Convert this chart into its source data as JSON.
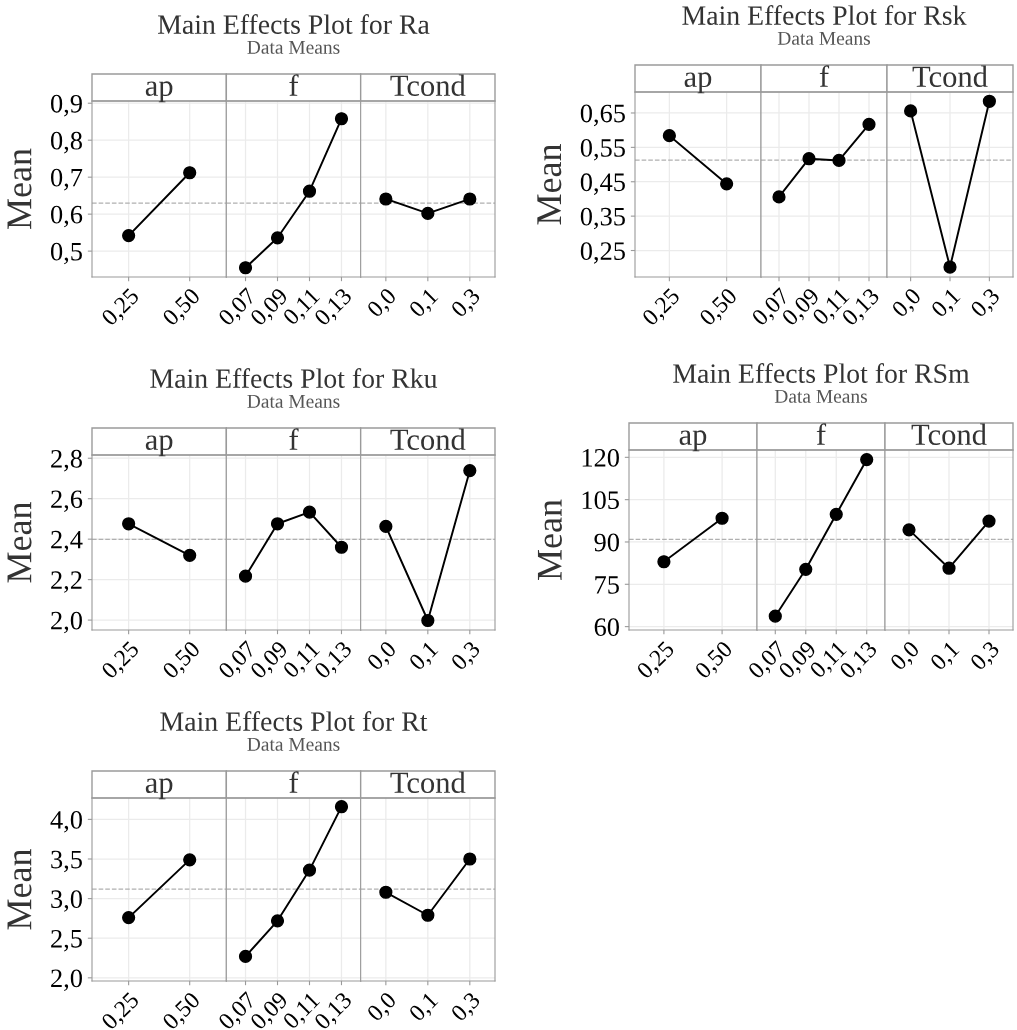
{
  "chart_data": [
    {
      "type": "line",
      "title": "ap",
      "annotations": [
        "Main Effects Plot for Ra",
        "Data Means"
      ],
      "ylabel": "Mean",
      "categories": [
        "0,25",
        "0,50"
      ],
      "series": [
        {
          "color": "#000000",
          "values": [
            0.542,
            0.712
          ]
        }
      ],
      "marker": "circle",
      "grid": true,
      "ylim": [
        0.43,
        0.906
      ],
      "yticks": [
        {
          "value": 0.5,
          "label": "0,5"
        },
        {
          "value": 0.6,
          "label": "0,6"
        },
        {
          "value": 0.7,
          "label": "0,7"
        },
        {
          "value": 0.8,
          "label": "0,8"
        },
        {
          "value": 0.9,
          "label": "0,9"
        }
      ],
      "ref_lines": [
        {
          "axis": "y",
          "value": 0.63,
          "color": "#b0b0b0",
          "line_style": "dashed"
        }
      ]
    },
    {
      "type": "line",
      "title": "f",
      "categories": [
        "0,07",
        "0,09",
        "0,11",
        "0,13"
      ],
      "series": [
        {
          "color": "#000000",
          "values": [
            0.455,
            0.536,
            0.662,
            0.858
          ]
        }
      ],
      "marker": "circle",
      "grid": true,
      "tick_labels": "x",
      "ylim": [
        0.43,
        0.906
      ],
      "yticks": [
        {
          "value": 0.5,
          "label": null
        },
        {
          "value": 0.6,
          "label": null
        },
        {
          "value": 0.7,
          "label": null
        },
        {
          "value": 0.8,
          "label": null
        },
        {
          "value": 0.9,
          "label": null
        }
      ],
      "ref_lines": [
        {
          "axis": "y",
          "value": 0.63,
          "color": "#b0b0b0",
          "line_style": "dashed"
        }
      ]
    },
    {
      "type": "line",
      "title": "Tcond",
      "categories": [
        "0,0",
        "0,1",
        "0,3"
      ],
      "series": [
        {
          "color": "#000000",
          "values": [
            0.641,
            0.602,
            0.641
          ]
        }
      ],
      "marker": "circle",
      "grid": true,
      "tick_labels": "x",
      "ylim": [
        0.43,
        0.906
      ],
      "yticks": [
        {
          "value": 0.5,
          "label": null
        },
        {
          "value": 0.6,
          "label": null
        },
        {
          "value": 0.7,
          "label": null
        },
        {
          "value": 0.8,
          "label": null
        },
        {
          "value": 0.9,
          "label": null
        }
      ],
      "ref_lines": [
        {
          "axis": "y",
          "value": 0.63,
          "color": "#b0b0b0",
          "line_style": "dashed"
        }
      ]
    },
    {
      "type": "line",
      "title": "ap",
      "annotations": [
        "Main Effects Plot for Rsk",
        "Data Means"
      ],
      "ylabel": "Mean",
      "categories": [
        "0,25",
        "0,50"
      ],
      "series": [
        {
          "color": "#000000",
          "values": [
            0.584,
            0.444
          ]
        }
      ],
      "marker": "circle",
      "grid": true,
      "ylim": [
        0.173,
        0.711
      ],
      "yticks": [
        {
          "value": 0.25,
          "label": "0,25"
        },
        {
          "value": 0.35,
          "label": "0,35"
        },
        {
          "value": 0.45,
          "label": "0,45"
        },
        {
          "value": 0.55,
          "label": "0,55"
        },
        {
          "value": 0.65,
          "label": "0,65"
        }
      ],
      "ref_lines": [
        {
          "axis": "y",
          "value": 0.513,
          "color": "#b0b0b0",
          "line_style": "dashed"
        }
      ]
    },
    {
      "type": "line",
      "title": "f",
      "categories": [
        "0,07",
        "0,09",
        "0,11",
        "0,13"
      ],
      "series": [
        {
          "color": "#000000",
          "values": [
            0.406,
            0.517,
            0.512,
            0.617
          ]
        }
      ],
      "marker": "circle",
      "grid": true,
      "tick_labels": "x",
      "ylim": [
        0.173,
        0.711
      ],
      "yticks": [
        {
          "value": 0.25,
          "label": null
        },
        {
          "value": 0.35,
          "label": null
        },
        {
          "value": 0.45,
          "label": null
        },
        {
          "value": 0.55,
          "label": null
        },
        {
          "value": 0.65,
          "label": null
        }
      ],
      "ref_lines": [
        {
          "axis": "y",
          "value": 0.513,
          "color": "#b0b0b0",
          "line_style": "dashed"
        }
      ]
    },
    {
      "type": "line",
      "title": "Tcond",
      "categories": [
        "0,0",
        "0,1",
        "0,3"
      ],
      "series": [
        {
          "color": "#000000",
          "values": [
            0.656,
            0.202,
            0.684
          ]
        }
      ],
      "marker": "circle",
      "grid": true,
      "tick_labels": "x",
      "ylim": [
        0.173,
        0.711
      ],
      "yticks": [
        {
          "value": 0.25,
          "label": null
        },
        {
          "value": 0.35,
          "label": null
        },
        {
          "value": 0.45,
          "label": null
        },
        {
          "value": 0.55,
          "label": null
        },
        {
          "value": 0.65,
          "label": null
        }
      ],
      "ref_lines": [
        {
          "axis": "y",
          "value": 0.513,
          "color": "#b0b0b0",
          "line_style": "dashed"
        }
      ]
    },
    {
      "type": "line",
      "title": "ap",
      "annotations": [
        "Main Effects Plot for Rku",
        "Data Means"
      ],
      "ylabel": "Mean",
      "categories": [
        "0,25",
        "0,50"
      ],
      "series": [
        {
          "color": "#000000",
          "values": [
            2.476,
            2.32
          ]
        }
      ],
      "marker": "circle",
      "grid": true,
      "ylim": [
        1.951,
        2.816
      ],
      "yticks": [
        {
          "value": 2.0,
          "label": "2,0"
        },
        {
          "value": 2.2,
          "label": "2,2"
        },
        {
          "value": 2.4,
          "label": "2,4"
        },
        {
          "value": 2.6,
          "label": "2,6"
        },
        {
          "value": 2.8,
          "label": "2,8"
        }
      ],
      "ref_lines": [
        {
          "axis": "y",
          "value": 2.399,
          "color": "#b0b0b0",
          "line_style": "dashed"
        }
      ]
    },
    {
      "type": "line",
      "title": "f",
      "categories": [
        "0,07",
        "0,09",
        "0,11",
        "0,13"
      ],
      "series": [
        {
          "color": "#000000",
          "values": [
            2.217,
            2.476,
            2.534,
            2.36
          ]
        }
      ],
      "marker": "circle",
      "grid": true,
      "tick_labels": "x",
      "ylim": [
        1.951,
        2.816
      ],
      "yticks": [
        {
          "value": 2.0,
          "label": null
        },
        {
          "value": 2.2,
          "label": null
        },
        {
          "value": 2.4,
          "label": null
        },
        {
          "value": 2.6,
          "label": null
        },
        {
          "value": 2.8,
          "label": null
        }
      ],
      "ref_lines": [
        {
          "axis": "y",
          "value": 2.399,
          "color": "#b0b0b0",
          "line_style": "dashed"
        }
      ]
    },
    {
      "type": "line",
      "title": "Tcond",
      "categories": [
        "0,0",
        "0,1",
        "0,3"
      ],
      "series": [
        {
          "color": "#000000",
          "values": [
            2.463,
            1.998,
            2.739
          ]
        }
      ],
      "marker": "circle",
      "grid": true,
      "tick_labels": "x",
      "ylim": [
        1.951,
        2.816
      ],
      "yticks": [
        {
          "value": 2.0,
          "label": null
        },
        {
          "value": 2.2,
          "label": null
        },
        {
          "value": 2.4,
          "label": null
        },
        {
          "value": 2.6,
          "label": null
        },
        {
          "value": 2.8,
          "label": null
        }
      ],
      "ref_lines": [
        {
          "axis": "y",
          "value": 2.399,
          "color": "#b0b0b0",
          "line_style": "dashed"
        }
      ]
    },
    {
      "type": "line",
      "title": "ap",
      "annotations": [
        "Main Effects Plot for RSm",
        "Data Means"
      ],
      "ylabel": "Mean",
      "categories": [
        "0,25",
        "0,50"
      ],
      "series": [
        {
          "color": "#000000",
          "values": [
            83.0,
            98.4
          ]
        }
      ],
      "marker": "circle",
      "grid": true,
      "ylim": [
        58.8,
        122.6
      ],
      "yticks": [
        60,
        75,
        90,
        105,
        120
      ],
      "ref_lines": [
        {
          "axis": "y",
          "value": 90.9,
          "color": "#b0b0b0",
          "line_style": "dashed"
        }
      ]
    },
    {
      "type": "line",
      "title": "f",
      "categories": [
        "0,07",
        "0,09",
        "0,11",
        "0,13"
      ],
      "series": [
        {
          "color": "#000000",
          "values": [
            63.7,
            80.3,
            99.8,
            119.2
          ]
        }
      ],
      "marker": "circle",
      "grid": true,
      "tick_labels": "x",
      "ylim": [
        58.8,
        122.6
      ],
      "yticks": [
        {
          "value": 60,
          "label": null
        },
        {
          "value": 75,
          "label": null
        },
        {
          "value": 90,
          "label": null
        },
        {
          "value": 105,
          "label": null
        },
        {
          "value": 120,
          "label": null
        }
      ],
      "ref_lines": [
        {
          "axis": "y",
          "value": 90.9,
          "color": "#b0b0b0",
          "line_style": "dashed"
        }
      ]
    },
    {
      "type": "line",
      "title": "Tcond",
      "categories": [
        "0,0",
        "0,1",
        "0,3"
      ],
      "series": [
        {
          "color": "#000000",
          "values": [
            94.3,
            80.7,
            97.4
          ]
        }
      ],
      "marker": "circle",
      "grid": true,
      "tick_labels": "x",
      "ylim": [
        58.8,
        122.6
      ],
      "yticks": [
        {
          "value": 60,
          "label": null
        },
        {
          "value": 75,
          "label": null
        },
        {
          "value": 90,
          "label": null
        },
        {
          "value": 105,
          "label": null
        },
        {
          "value": 120,
          "label": null
        }
      ],
      "ref_lines": [
        {
          "axis": "y",
          "value": 90.9,
          "color": "#b0b0b0",
          "line_style": "dashed"
        }
      ]
    },
    {
      "type": "line",
      "title": "ap",
      "annotations": [
        "Main Effects Plot for Rt",
        "Data Means"
      ],
      "ylabel": "Mean",
      "categories": [
        "0,25",
        "0,50"
      ],
      "series": [
        {
          "color": "#000000",
          "values": [
            2.76,
            3.49
          ]
        }
      ],
      "marker": "circle",
      "grid": true,
      "ylim": [
        1.96,
        4.27
      ],
      "yticks": [
        {
          "value": 2.0,
          "label": "2,0"
        },
        {
          "value": 2.5,
          "label": "2,5"
        },
        {
          "value": 3.0,
          "label": "3,0"
        },
        {
          "value": 3.5,
          "label": "3,5"
        },
        {
          "value": 4.0,
          "label": "4,0"
        }
      ],
      "ref_lines": [
        {
          "axis": "y",
          "value": 3.12,
          "color": "#b0b0b0",
          "line_style": "dashed"
        }
      ]
    },
    {
      "type": "line",
      "title": "f",
      "categories": [
        "0,07",
        "0,09",
        "0,11",
        "0,13"
      ],
      "series": [
        {
          "color": "#000000",
          "values": [
            2.27,
            2.72,
            3.36,
            4.16
          ]
        }
      ],
      "marker": "circle",
      "grid": true,
      "tick_labels": "x",
      "ylim": [
        1.96,
        4.27
      ],
      "yticks": [
        {
          "value": 2.0,
          "label": null
        },
        {
          "value": 2.5,
          "label": null
        },
        {
          "value": 3.0,
          "label": null
        },
        {
          "value": 3.5,
          "label": null
        },
        {
          "value": 4.0,
          "label": null
        }
      ],
      "ref_lines": [
        {
          "axis": "y",
          "value": 3.12,
          "color": "#b0b0b0",
          "line_style": "dashed"
        }
      ]
    },
    {
      "type": "line",
      "title": "Tcond",
      "categories": [
        "0,0",
        "0,1",
        "0,3"
      ],
      "series": [
        {
          "color": "#000000",
          "values": [
            3.08,
            2.79,
            3.5
          ]
        }
      ],
      "marker": "circle",
      "grid": true,
      "tick_labels": "x",
      "ylim": [
        1.96,
        4.27
      ],
      "yticks": [
        {
          "value": 2.0,
          "label": null
        },
        {
          "value": 2.5,
          "label": null
        },
        {
          "value": 3.0,
          "label": null
        },
        {
          "value": 3.5,
          "label": null
        },
        {
          "value": 4.0,
          "label": null
        }
      ],
      "ref_lines": [
        {
          "axis": "y",
          "value": 3.12,
          "color": "#b0b0b0",
          "line_style": "dashed"
        }
      ]
    }
  ]
}
